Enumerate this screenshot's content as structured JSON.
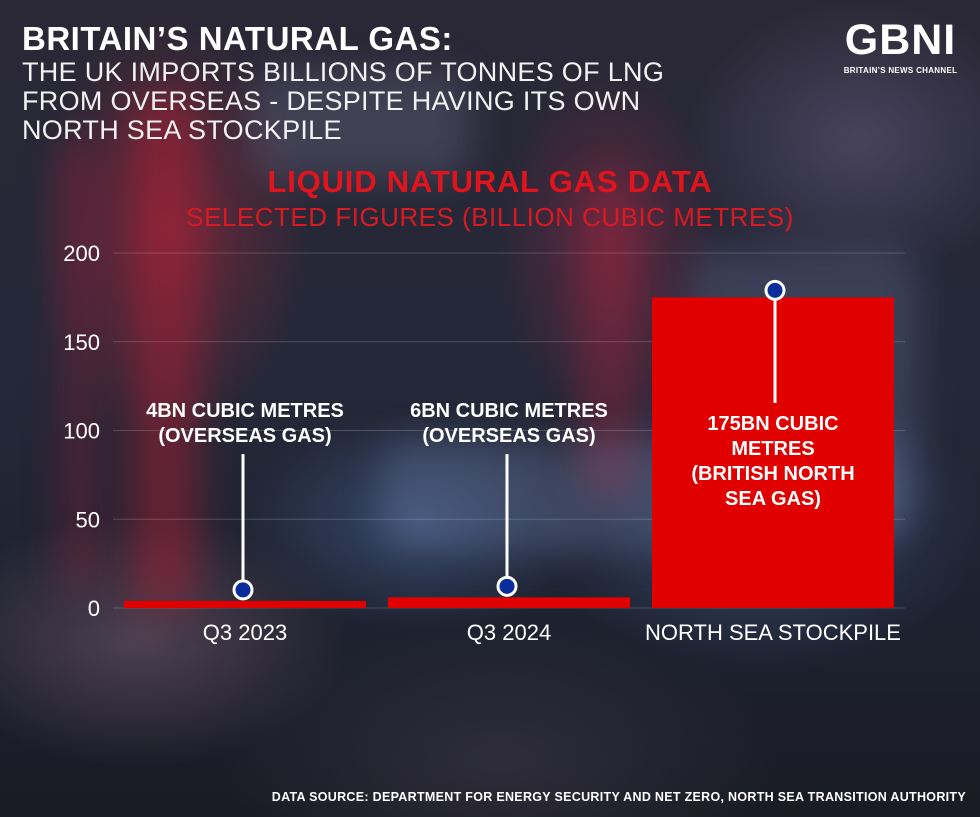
{
  "header": {
    "headline": "BRITAIN’S NATURAL GAS:",
    "subhead": "THE UK IMPORTS BILLIONS OF TONNES OF LNG FROM OVERSEAS - DESPITE HAVING ITS OWN NORTH SEA STOCKPILE"
  },
  "logo": {
    "text": "GBNI",
    "tagline": "BRITAIN’S NEWS CHANNEL"
  },
  "colors": {
    "accent": "#e0141c",
    "bar": "#e00000",
    "marker": "#0a2d9c",
    "text": "#ffffff"
  },
  "chart_data": {
    "type": "bar",
    "title": "LIQUID NATURAL GAS DATA",
    "subtitle": "SELECTED FIGURES (BILLION CUBIC METRES)",
    "categories": [
      "Q3 2023",
      "Q3 2024",
      "NORTH SEA STOCKPILE"
    ],
    "values": [
      4,
      6,
      175
    ],
    "ylim": [
      0,
      200
    ],
    "yticks": [
      "0",
      "50",
      "100",
      "150",
      "200"
    ],
    "grid": true,
    "annotations": [
      {
        "lines": [
          "4BN CUBIC METRES",
          "(OVERSEAS GAS)"
        ]
      },
      {
        "lines": [
          "6BN CUBIC METRES",
          "(OVERSEAS GAS)"
        ]
      },
      {
        "lines": [
          "175BN CUBIC",
          "METRES",
          "(BRITISH NORTH",
          "SEA GAS)"
        ]
      }
    ]
  },
  "footer": {
    "source": "DATA SOURCE: DEPARTMENT FOR ENERGY SECURITY AND NET ZERO, NORTH SEA TRANSITION AUTHORITY"
  }
}
